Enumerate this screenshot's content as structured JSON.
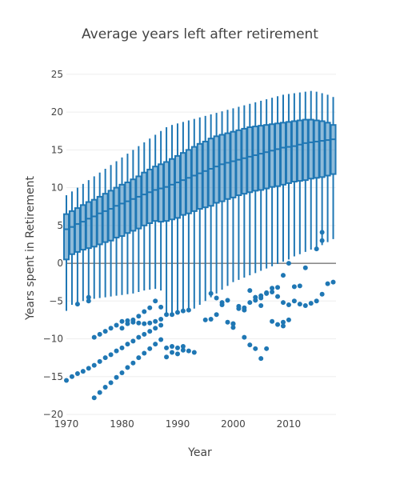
{
  "chart_data": {
    "type": "box",
    "title": "Average years left after retirement",
    "xlabel": "Year",
    "ylabel": "Years spent in Retirement",
    "xlim": [
      1970,
      2018.5
    ],
    "ylim": [
      -20,
      27
    ],
    "x_ticks": [
      1970,
      1980,
      1990,
      2000,
      2010
    ],
    "y_ticks": [
      -20,
      -15,
      -10,
      -5,
      0,
      5,
      10,
      15,
      20,
      25
    ],
    "grid": true,
    "color": "#1f77b4",
    "box_stats": {
      "years": [
        1970,
        1971,
        1972,
        1973,
        1974,
        1975,
        1976,
        1977,
        1978,
        1979,
        1980,
        1981,
        1982,
        1983,
        1984,
        1985,
        1986,
        1987,
        1988,
        1989,
        1990,
        1991,
        1992,
        1993,
        1994,
        1995,
        1996,
        1997,
        1998,
        1999,
        2000,
        2001,
        2002,
        2003,
        2004,
        2005,
        2006,
        2007,
        2008,
        2009,
        2010,
        2011,
        2012,
        2013,
        2014,
        2015,
        2016,
        2017,
        2018
      ],
      "q1": [
        0.5,
        1.2,
        1.5,
        1.8,
        2.0,
        2.2,
        2.5,
        2.8,
        3.0,
        3.4,
        3.6,
        4.0,
        4.3,
        4.6,
        5.0,
        5.3,
        5.6,
        5.5,
        5.6,
        5.8,
        6.0,
        6.4,
        6.6,
        6.9,
        7.2,
        7.4,
        7.6,
        8.0,
        8.2,
        8.5,
        8.7,
        9.0,
        9.2,
        9.4,
        9.6,
        9.7,
        9.9,
        10.1,
        10.2,
        10.4,
        10.6,
        10.8,
        10.9,
        11.0,
        11.2,
        11.3,
        11.4,
        11.6,
        11.8
      ],
      "median": [
        4.5,
        4.8,
        5.2,
        5.5,
        5.9,
        6.2,
        6.6,
        6.9,
        7.2,
        7.6,
        7.9,
        8.2,
        8.5,
        8.8,
        9.1,
        9.4,
        9.7,
        9.9,
        10.1,
        10.4,
        10.7,
        11.0,
        11.3,
        11.6,
        11.9,
        12.2,
        12.5,
        12.8,
        13.1,
        13.3,
        13.5,
        13.7,
        13.9,
        14.1,
        14.3,
        14.5,
        14.7,
        14.9,
        15.1,
        15.3,
        15.4,
        15.5,
        15.7,
        15.9,
        16.0,
        16.1,
        16.2,
        16.3,
        16.4
      ],
      "q3": [
        6.5,
        6.9,
        7.3,
        7.7,
        8.1,
        8.4,
        8.8,
        9.2,
        9.6,
        10.0,
        10.4,
        10.7,
        11.1,
        11.5,
        12.0,
        12.4,
        12.8,
        13.1,
        13.4,
        13.8,
        14.2,
        14.6,
        15.0,
        15.4,
        15.8,
        16.1,
        16.5,
        16.8,
        17.0,
        17.2,
        17.4,
        17.6,
        17.8,
        18.0,
        18.1,
        18.2,
        18.3,
        18.4,
        18.5,
        18.6,
        18.7,
        18.8,
        18.9,
        19.0,
        19.0,
        18.9,
        18.8,
        18.6,
        18.3
      ],
      "whisker_low": [
        -6.3,
        -5.5,
        -5.2,
        -5.0,
        -4.9,
        -4.7,
        -4.6,
        -4.5,
        -4.4,
        -4.3,
        -4.2,
        -4.1,
        -4.0,
        -3.8,
        -3.6,
        -3.5,
        -3.4,
        -3.6,
        -7.0,
        -6.8,
        -6.6,
        -6.4,
        -6.2,
        -6.0,
        -5.5,
        -5.0,
        -4.5,
        -4.0,
        -3.5,
        -3.0,
        -2.5,
        -2.2,
        -1.9,
        -1.6,
        -1.3,
        -1.0,
        -0.7,
        -0.4,
        -0.1,
        0.2,
        0.5,
        0.9,
        1.2,
        1.5,
        1.8,
        2.1,
        2.4,
        2.8,
        3.2
      ],
      "whisker_high": [
        9.0,
        9.5,
        10.0,
        10.5,
        11.0,
        11.5,
        12.0,
        12.5,
        13.0,
        13.5,
        14.0,
        14.5,
        15.0,
        15.5,
        16.0,
        16.5,
        17.0,
        17.5,
        18.0,
        18.3,
        18.5,
        18.7,
        18.9,
        19.1,
        19.3,
        19.5,
        19.7,
        19.9,
        20.1,
        20.3,
        20.5,
        20.7,
        20.9,
        21.1,
        21.3,
        21.5,
        21.7,
        21.9,
        22.1,
        22.3,
        22.4,
        22.5,
        22.6,
        22.7,
        22.8,
        22.7,
        22.5,
        22.3,
        22.0
      ]
    },
    "outliers": {
      "x": [
        1970,
        1971,
        1972,
        1973,
        1974,
        1975,
        1976,
        1977,
        1978,
        1979,
        1980,
        1981,
        1982,
        1983,
        1984,
        1985,
        1986,
        1987,
        1975,
        1976,
        1977,
        1978,
        1979,
        1980,
        1981,
        1982,
        1983,
        1984,
        1985,
        1986,
        1987,
        1988,
        1975,
        1976,
        1977,
        1978,
        1979,
        1980,
        1981,
        1982,
        1983,
        1984,
        1985,
        1986,
        1987,
        1988,
        1989,
        1990,
        1991,
        1992,
        1993,
        1972,
        1974,
        1974,
        1980,
        1981,
        1982,
        1983,
        1984,
        1985,
        1986,
        1987,
        1988,
        1989,
        1990,
        1991,
        1989,
        1990,
        1991,
        1992,
        1995,
        1996,
        1997,
        1998,
        1999,
        2000,
        1996,
        1997,
        1998,
        1999,
        2000,
        2001,
        2002,
        2003,
        2004,
        2005,
        2006,
        2007,
        2008,
        2009,
        2001,
        2002,
        2003,
        2004,
        2005,
        2006,
        2007,
        2008,
        2009,
        2010,
        2011,
        2012,
        2013,
        2014,
        2015,
        2016,
        2017,
        2018,
        2000,
        2002,
        2003,
        2004,
        2005,
        2006,
        2007,
        2008,
        2009,
        2010,
        2011,
        2012,
        2016,
        2016,
        2015,
        2013,
        2010,
        2009,
        2005
      ],
      "y": [
        -15.5,
        -15.0,
        -14.6,
        -14.3,
        -13.9,
        -13.5,
        -13.0,
        -12.5,
        -12.1,
        -11.6,
        -11.2,
        -10.7,
        -10.3,
        -9.8,
        -9.4,
        -9.0,
        -8.6,
        -8.2,
        -9.8,
        -9.4,
        -9.0,
        -8.6,
        -8.2,
        -7.7,
        -7.6,
        -7.8,
        -7.9,
        -8.0,
        -7.9,
        -7.7,
        -7.4,
        -6.8,
        -17.8,
        -17.1,
        -16.4,
        -15.8,
        -15.1,
        -14.5,
        -13.8,
        -13.2,
        -12.5,
        -11.9,
        -11.3,
        -10.7,
        -10.1,
        -11.2,
        -11.0,
        -11.2,
        -11.0,
        -11.6,
        -11.8,
        -5.4,
        -4.5,
        -5.0,
        -8.6,
        -8.0,
        -7.5,
        -7.0,
        -6.4,
        -5.9,
        -5.0,
        -5.8,
        -12.4,
        -6.8,
        -6.5,
        -6.3,
        -11.8,
        -12.0,
        -11.5,
        -6.2,
        -7.5,
        -7.4,
        -6.8,
        -5.5,
        -7.8,
        -8.0,
        -4.0,
        -4.6,
        -5.2,
        -4.9,
        -8.5,
        -5.7,
        -6.2,
        -3.6,
        -4.5,
        -4.3,
        -4.0,
        -3.8,
        -4.4,
        -5.2,
        -6.0,
        -9.8,
        -10.8,
        -11.3,
        -12.6,
        -11.3,
        -7.7,
        -8.1,
        -8.3,
        -5.5,
        -5.0,
        -5.4,
        -5.6,
        -5.3,
        -5.0,
        -4.1,
        -2.7,
        -2.5,
        -8.0,
        -5.9,
        -5.2,
        -4.9,
        -4.6,
        -3.9,
        -3.3,
        -3.2,
        -1.6,
        0.0,
        -3.1,
        -3.0,
        3.0,
        4.1,
        1.9,
        -0.6,
        -7.5,
        -7.8,
        -5.6
      ]
    }
  }
}
